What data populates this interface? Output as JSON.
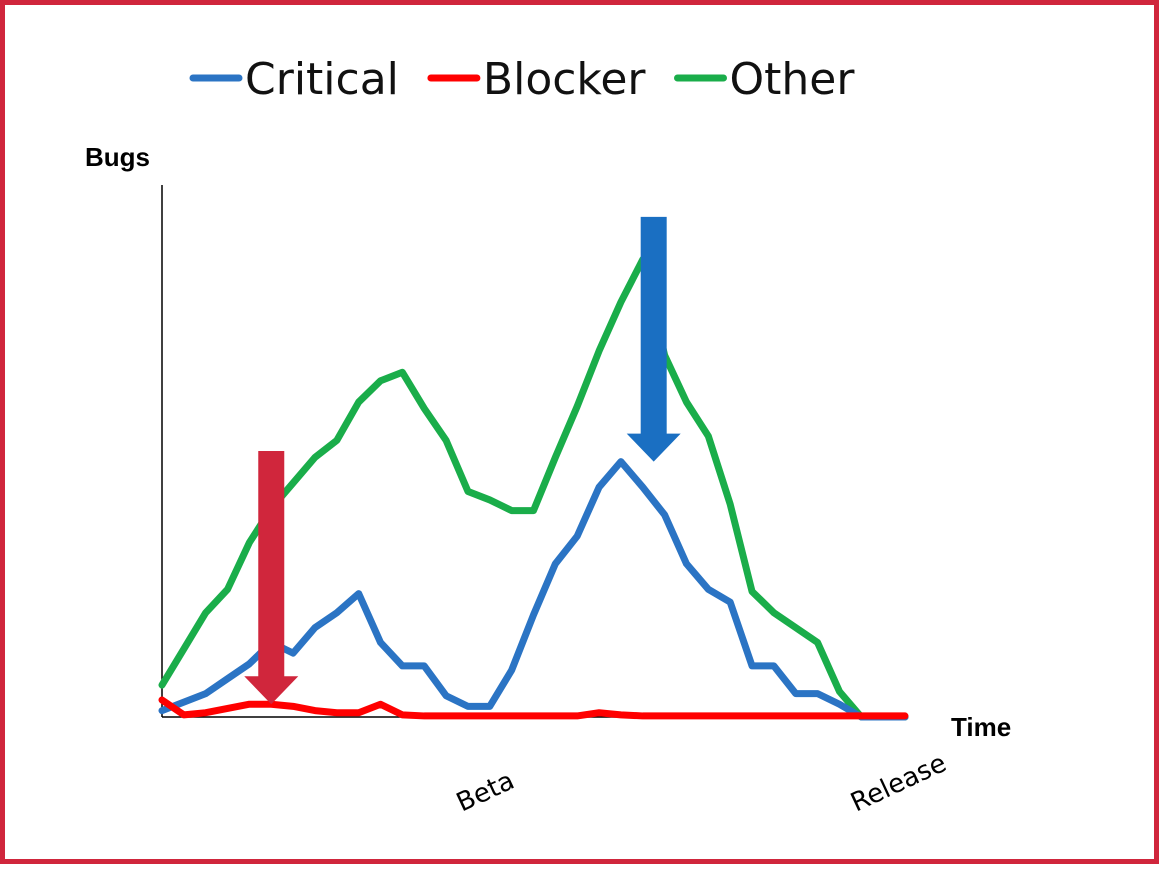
{
  "chart_data": {
    "type": "line",
    "title": "",
    "xlabel": "Time",
    "ylabel": "Bugs",
    "x_ticks": [
      {
        "label": "Beta",
        "x": 15
      },
      {
        "label": "Release",
        "x": 34
      }
    ],
    "xlim": [
      0,
      34
    ],
    "ylim": [
      0,
      25
    ],
    "grid": false,
    "legend": "top",
    "x": [
      0,
      1,
      2,
      3,
      4,
      5,
      6,
      7,
      8,
      9,
      10,
      11,
      12,
      13,
      14,
      15,
      16,
      17,
      18,
      19,
      20,
      21,
      22,
      23,
      24,
      25,
      26,
      27,
      28,
      29,
      30,
      31,
      32,
      33,
      34
    ],
    "series": [
      {
        "name": "Critical",
        "color": "#2b74c4",
        "values": [
          0.3,
          0.7,
          1.1,
          1.8,
          2.5,
          3.5,
          3.0,
          4.2,
          4.9,
          5.8,
          3.5,
          2.4,
          2.4,
          1.0,
          0.5,
          0.5,
          2.2,
          4.8,
          7.2,
          8.5,
          10.8,
          12.0,
          10.8,
          9.5,
          7.2,
          6.0,
          5.4,
          2.4,
          2.4,
          1.1,
          1.1,
          0.6,
          0.0,
          0.0,
          0.0
        ]
      },
      {
        "name": "Blocker",
        "color": "#ff0000",
        "values": [
          0.8,
          0.1,
          0.2,
          0.4,
          0.6,
          0.6,
          0.5,
          0.3,
          0.2,
          0.2,
          0.6,
          0.1,
          0.05,
          0.05,
          0.05,
          0.05,
          0.05,
          0.05,
          0.05,
          0.05,
          0.2,
          0.1,
          0.05,
          0.05,
          0.05,
          0.05,
          0.05,
          0.05,
          0.05,
          0.05,
          0.05,
          0.05,
          0.05,
          0.05,
          0.05
        ]
      },
      {
        "name": "Other",
        "color": "#1aad4a",
        "values": [
          1.5,
          3.2,
          4.9,
          6.0,
          8.2,
          9.8,
          11.0,
          12.2,
          13.0,
          14.8,
          15.8,
          16.2,
          14.5,
          13.0,
          10.6,
          10.2,
          9.7,
          9.7,
          12.2,
          14.6,
          17.2,
          19.5,
          21.5,
          17.0,
          14.8,
          13.2,
          10.0,
          5.9,
          4.9,
          4.2,
          3.5,
          1.2,
          0.0,
          0.0,
          0.0
        ]
      }
    ],
    "annotations": [
      {
        "type": "arrow",
        "color": "#d0263c",
        "x": 5,
        "y_top": 12.5,
        "y_tip": 0.6
      },
      {
        "type": "arrow",
        "color": "#1a6fc2",
        "x": 22.5,
        "y_top": 23.5,
        "y_tip": 12.0
      }
    ]
  }
}
